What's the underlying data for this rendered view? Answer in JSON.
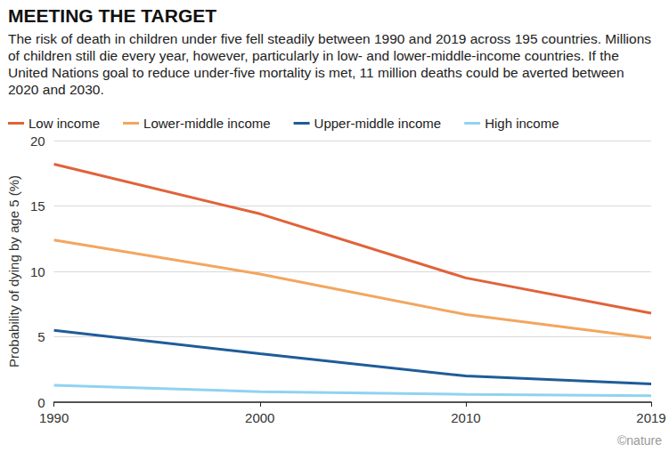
{
  "chart_data": {
    "type": "line",
    "title": "MEETING THE TARGET",
    "subtitle": "The risk of death in children under five fell steadily between 1990 and 2019 across 195 countries. Millions of children still die every year, however, particularly in low- and lower-middle-income countries. If the United Nations goal to reduce under-five mortality is met, 11 million deaths could be averted between 2020 and 2030.",
    "y_label": "Probability of dying by age 5 (%)",
    "annotations": [
      "©nature"
    ],
    "x": [
      1990,
      2000,
      2010,
      2019
    ],
    "series": [
      {
        "name": "Low income",
        "color": "#e0633a",
        "values": [
          18.2,
          14.4,
          9.5,
          6.8
        ]
      },
      {
        "name": "Lower-middle income",
        "color": "#f3a65f",
        "values": [
          12.4,
          9.8,
          6.7,
          4.9
        ]
      },
      {
        "name": "Upper-middle income",
        "color": "#1f5c99",
        "values": [
          5.5,
          3.7,
          2.0,
          1.4
        ]
      },
      {
        "name": "High income",
        "color": "#8fd3f0",
        "values": [
          1.3,
          0.8,
          0.6,
          0.5
        ]
      }
    ],
    "xlim": [
      1990,
      2019
    ],
    "xticks": [
      1990,
      2000,
      2010,
      2019
    ],
    "ylim": [
      0,
      20
    ],
    "yticks": [
      0,
      5,
      10,
      15,
      20
    ],
    "grid": true,
    "legend": "top-left",
    "marker": "none"
  }
}
